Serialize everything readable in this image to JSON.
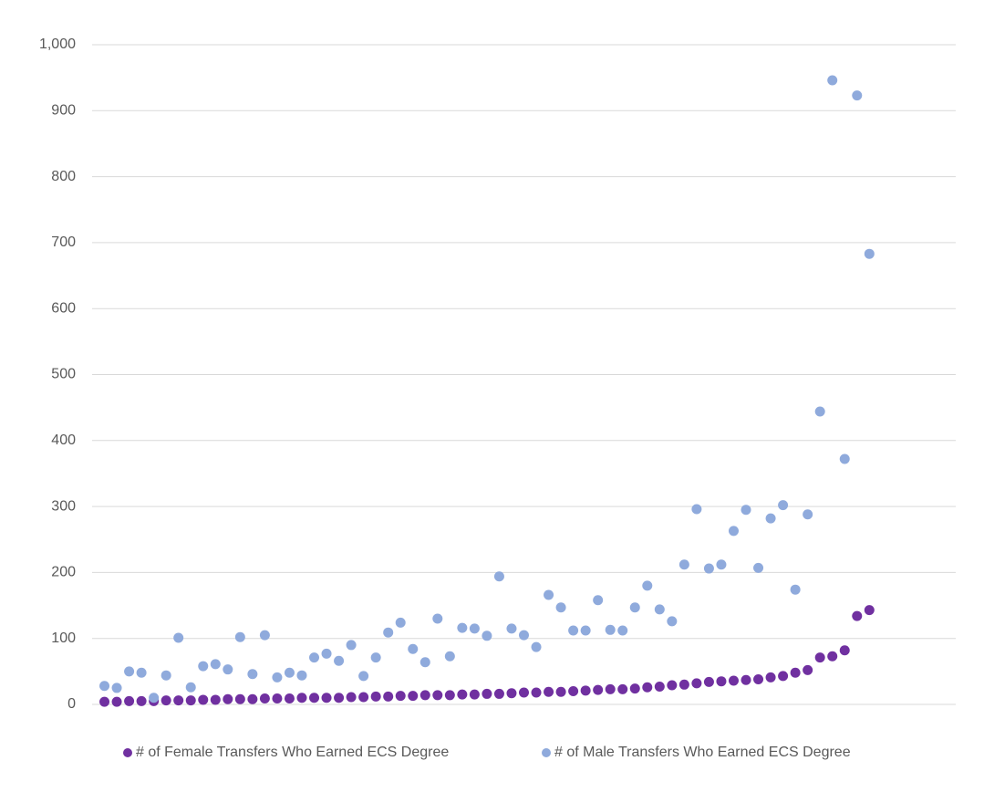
{
  "chart_data": {
    "type": "scatter",
    "x": [
      1,
      2,
      3,
      4,
      5,
      6,
      7,
      8,
      9,
      10,
      11,
      12,
      13,
      14,
      15,
      16,
      17,
      18,
      19,
      20,
      21,
      22,
      23,
      24,
      25,
      26,
      27,
      28,
      29,
      30,
      31,
      32,
      33,
      34,
      35,
      36,
      37,
      38,
      39,
      40,
      41,
      42,
      43,
      44,
      45,
      46,
      47,
      48,
      49,
      50,
      51,
      52,
      53,
      54,
      55,
      56,
      57,
      58,
      59,
      60,
      61,
      62,
      63
    ],
    "xlim": [
      0,
      70
    ],
    "ylim": [
      0,
      1000
    ],
    "yticks": [
      0,
      100,
      200,
      300,
      400,
      500,
      600,
      700,
      800,
      900,
      {
        "value": 1000,
        "label": "1,000"
      }
    ],
    "grid": true,
    "legend": "bottom",
    "series": [
      {
        "name": "# of Female Transfers Who Earned ECS Degree",
        "color": "#7030a0",
        "values": [
          4,
          4,
          5,
          5,
          5,
          6,
          6,
          6,
          7,
          7,
          8,
          8,
          8,
          9,
          9,
          9,
          10,
          10,
          10,
          10,
          11,
          11,
          12,
          12,
          13,
          13,
          14,
          14,
          14,
          15,
          15,
          16,
          16,
          17,
          18,
          18,
          19,
          19,
          20,
          21,
          22,
          23,
          23,
          24,
          26,
          27,
          29,
          30,
          32,
          34,
          35,
          36,
          37,
          38,
          41,
          43,
          48,
          52,
          71,
          73,
          82,
          134,
          143
        ]
      },
      {
        "name": "# of Male Transfers Who Earned ECS Degree",
        "color": "#8faadc",
        "values": [
          28,
          25,
          50,
          48,
          10,
          44,
          101,
          26,
          58,
          61,
          53,
          102,
          46,
          105,
          41,
          48,
          44,
          71,
          77,
          66,
          90,
          43,
          71,
          109,
          124,
          84,
          64,
          130,
          73,
          116,
          115,
          104,
          194,
          115,
          105,
          87,
          166,
          147,
          112,
          112,
          158,
          113,
          112,
          147,
          180,
          144,
          126,
          212,
          296,
          206,
          212,
          263,
          295,
          207,
          282,
          302,
          174,
          288,
          444,
          946,
          372,
          923,
          683
        ]
      }
    ]
  }
}
